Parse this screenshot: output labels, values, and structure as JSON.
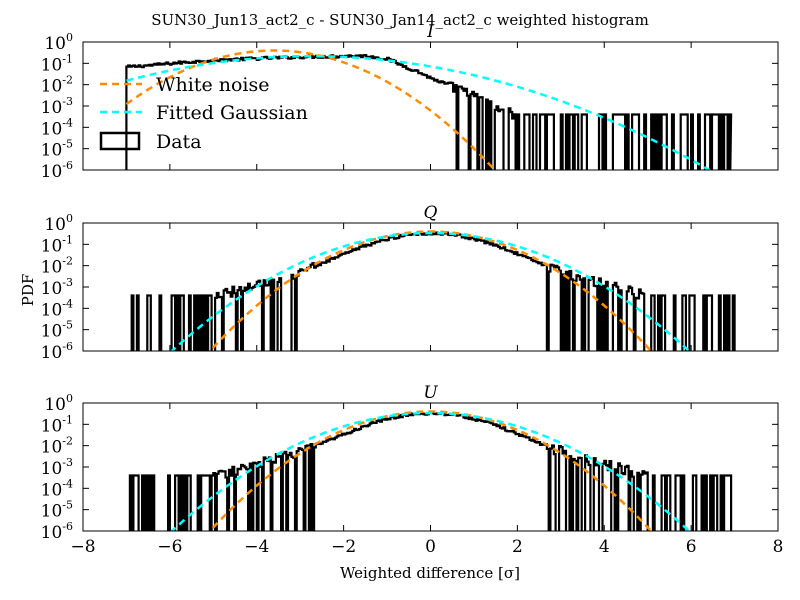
{
  "figure": {
    "suptitle": "SUN30_Jun13_act2_c - SUN30_Jan14_act2_c weighted histogram",
    "ylabel": "PDF",
    "xlabel": "Weighted difference [σ]",
    "xticks": [
      "−8",
      "−6",
      "−4",
      "−2",
      "0",
      "2",
      "4",
      "6",
      "8"
    ],
    "yticks": [
      {
        "base": "10",
        "exp": "0"
      },
      {
        "base": "10",
        "exp": "-1"
      },
      {
        "base": "10",
        "exp": "-2"
      },
      {
        "base": "10",
        "exp": "-3"
      },
      {
        "base": "10",
        "exp": "-4"
      },
      {
        "base": "10",
        "exp": "-5"
      },
      {
        "base": "10",
        "exp": "-6"
      }
    ],
    "legend": [
      "White noise",
      "Fitted Gaussian",
      "Data"
    ],
    "colors": {
      "white_noise": "#ff8c00",
      "fitted": "#00ffff",
      "data": "#000000"
    }
  },
  "chart_data": [
    {
      "type": "line",
      "title": "I",
      "xlim": [
        -8,
        8
      ],
      "ylim": [
        1e-06,
        1
      ],
      "yscale": "log",
      "legend_position": "upper-left",
      "series": [
        {
          "name": "White noise",
          "style": "dashed",
          "model": "gaussian",
          "mu": -3.6,
          "sigma": 1.0,
          "x_range": [
            -7,
            7
          ]
        },
        {
          "name": "Fitted Gaussian",
          "style": "dashed",
          "model": "gaussian",
          "mu": -2.75,
          "sigma": 1.85,
          "x_range": [
            -7,
            6.9
          ]
        },
        {
          "name": "Data",
          "style": "step",
          "points": [
            [
              -7.0,
              0.068
            ],
            [
              -6.5,
              0.08
            ],
            [
              -6.0,
              0.1
            ],
            [
              -5.0,
              0.14
            ],
            [
              -4.0,
              0.17
            ],
            [
              -3.0,
              0.2
            ],
            [
              -2.0,
              0.22
            ],
            [
              -1.5,
              0.22
            ],
            [
              -1.0,
              0.16
            ],
            [
              -0.6,
              0.07
            ],
            [
              -0.3,
              0.04
            ],
            [
              0.0,
              0.02
            ],
            [
              0.5,
              0.008
            ],
            [
              1.0,
              0.003
            ],
            [
              1.5,
              0.0008
            ],
            [
              2.0,
              0.0004
            ]
          ],
          "noise_range": [
            1.3,
            6.9
          ],
          "noise_peak": 0.0004,
          "floor": 1e-06
        }
      ]
    },
    {
      "type": "line",
      "title": "Q",
      "xlim": [
        -8,
        8
      ],
      "ylim": [
        1e-06,
        1
      ],
      "yscale": "log",
      "series": [
        {
          "name": "White noise",
          "style": "dashed",
          "model": "gaussian",
          "mu": 0.0,
          "sigma": 1.0,
          "x_range": [
            -5.2,
            5.2
          ]
        },
        {
          "name": "Fitted Gaussian",
          "style": "dashed",
          "model": "gaussian",
          "mu": 0.0,
          "sigma": 1.18,
          "x_range": [
            -6.5,
            6.5
          ]
        },
        {
          "name": "Data",
          "style": "step",
          "points": [
            [
              -5.0,
              0.0004
            ],
            [
              -4.5,
              0.0008
            ],
            [
              -4.0,
              0.0015
            ],
            [
              -3.5,
              0.003
            ],
            [
              -3.0,
              0.006
            ],
            [
              -2.5,
              0.013
            ],
            [
              -2.0,
              0.035
            ],
            [
              -1.5,
              0.09
            ],
            [
              -1.0,
              0.18
            ],
            [
              -0.5,
              0.3
            ],
            [
              0.0,
              0.34
            ],
            [
              0.5,
              0.3
            ],
            [
              1.0,
              0.18
            ],
            [
              1.5,
              0.09
            ],
            [
              2.0,
              0.035
            ],
            [
              2.5,
              0.013
            ],
            [
              3.0,
              0.006
            ],
            [
              3.5,
              0.003
            ],
            [
              4.0,
              0.0015
            ],
            [
              4.5,
              0.0008
            ],
            [
              5.0,
              0.0004
            ]
          ],
          "noise_range": [
            -7.0,
            -4.0,
            4.0,
            7.0
          ],
          "noise_peak": 0.0004,
          "floor": 1e-06
        }
      ]
    },
    {
      "type": "line",
      "title": "U",
      "xlim": [
        -8,
        8
      ],
      "ylim": [
        1e-06,
        1
      ],
      "yscale": "log",
      "series": [
        {
          "name": "White noise",
          "style": "dashed",
          "model": "gaussian",
          "mu": 0.0,
          "sigma": 1.0,
          "x_range": [
            -5.2,
            5.2
          ]
        },
        {
          "name": "Fitted Gaussian",
          "style": "dashed",
          "model": "gaussian",
          "mu": 0.0,
          "sigma": 1.18,
          "x_range": [
            -6.5,
            6.5
          ]
        },
        {
          "name": "Data",
          "style": "step",
          "points": [
            [
              -5.0,
              0.0004
            ],
            [
              -4.5,
              0.0008
            ],
            [
              -4.0,
              0.0015
            ],
            [
              -3.5,
              0.003
            ],
            [
              -3.0,
              0.006
            ],
            [
              -2.5,
              0.013
            ],
            [
              -2.0,
              0.035
            ],
            [
              -1.5,
              0.09
            ],
            [
              -1.0,
              0.18
            ],
            [
              -0.5,
              0.3
            ],
            [
              0.0,
              0.34
            ],
            [
              0.5,
              0.3
            ],
            [
              1.0,
              0.18
            ],
            [
              1.5,
              0.09
            ],
            [
              2.0,
              0.035
            ],
            [
              2.5,
              0.013
            ],
            [
              3.0,
              0.006
            ],
            [
              3.5,
              0.003
            ],
            [
              4.0,
              0.0015
            ],
            [
              4.5,
              0.0008
            ],
            [
              5.0,
              0.0004
            ]
          ],
          "noise_range": [
            -7.0,
            -4.0,
            4.0,
            7.0
          ],
          "noise_peak": 0.0004,
          "floor": 1e-06
        }
      ]
    }
  ]
}
